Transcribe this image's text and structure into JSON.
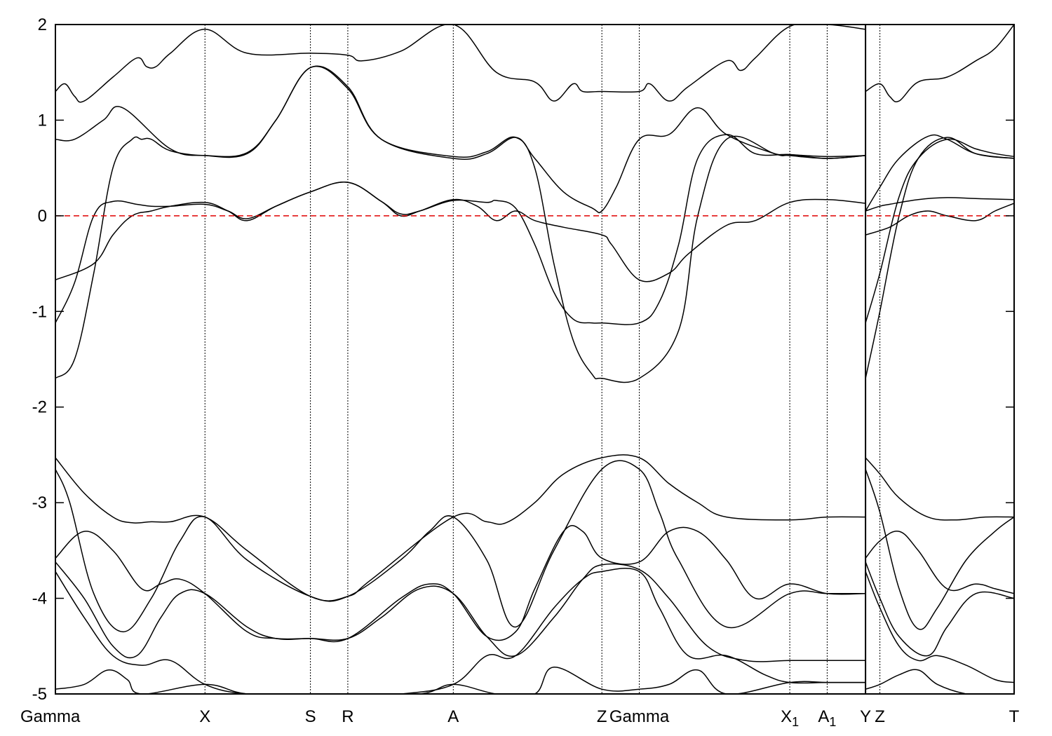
{
  "chart_data": {
    "type": "line",
    "title": "",
    "xlabel": "",
    "ylabel": "",
    "ylim": [
      -5,
      2
    ],
    "xlim": [
      0,
      1
    ],
    "grid": false,
    "y_ticks": [
      "2",
      "1",
      "0",
      "-1",
      "-2",
      "-3",
      "-4",
      "-5"
    ],
    "y_tick_values": [
      2,
      1,
      0,
      -1,
      -2,
      -3,
      -4,
      -5
    ],
    "fermi_level": 0,
    "fermi_color": "#e00000",
    "k_points": [
      {
        "label": "Gamma",
        "sub": "",
        "x": 0.0
      },
      {
        "label": "X",
        "sub": "",
        "x": 0.156
      },
      {
        "label": "S",
        "sub": "",
        "x": 0.266
      },
      {
        "label": "R",
        "sub": "",
        "x": 0.305
      },
      {
        "label": "A",
        "sub": "",
        "x": 0.415
      },
      {
        "label": "Z",
        "sub": "",
        "x": 0.57
      },
      {
        "label": "Gamma",
        "sub": "",
        "x": 0.609
      },
      {
        "label": "X",
        "sub": "1",
        "x": 0.766
      },
      {
        "label": "A",
        "sub": "1",
        "x": 0.805
      },
      {
        "label": "Y",
        "sub": "",
        "x": 0.845
      },
      {
        "label": "Z",
        "sub": "",
        "x": 0.86
      },
      {
        "label": "T",
        "sub": "",
        "x": 1.0
      }
    ],
    "segment_break_x": 0.845,
    "series": [
      {
        "x": [
          0,
          0.01,
          0.02,
          0.03,
          0.06,
          0.085,
          0.095,
          0.105,
          0.12,
          0.156,
          0.2,
          0.266,
          0.305,
          0.32,
          0.36,
          0.415,
          0.46,
          0.5,
          0.52,
          0.54,
          0.55,
          0.57,
          0.609,
          0.62,
          0.64,
          0.66,
          0.7,
          0.715,
          0.73,
          0.766,
          0.805,
          0.845
        ],
        "y": [
          1.3,
          1.38,
          1.25,
          1.2,
          1.45,
          1.65,
          1.56,
          1.56,
          1.7,
          1.95,
          1.7,
          1.7,
          1.68,
          1.62,
          1.72,
          2.0,
          1.5,
          1.4,
          1.2,
          1.38,
          1.3,
          1.3,
          1.3,
          1.38,
          1.2,
          1.35,
          1.62,
          1.52,
          1.65,
          1.98,
          2.0,
          1.95
        ]
      },
      {
        "x": [
          0,
          0.02,
          0.05,
          0.07,
          0.12,
          0.156,
          0.2,
          0.23,
          0.266,
          0.305,
          0.34,
          0.415,
          0.45,
          0.48,
          0.5,
          0.53,
          0.56,
          0.57,
          0.585,
          0.609,
          0.64,
          0.67,
          0.7,
          0.75,
          0.766,
          0.805,
          0.845
        ],
        "y": [
          0.8,
          0.8,
          1.0,
          1.13,
          0.7,
          0.63,
          0.65,
          1.0,
          1.55,
          1.35,
          0.8,
          0.6,
          0.65,
          0.82,
          0.6,
          0.25,
          0.08,
          0.05,
          0.3,
          0.8,
          0.85,
          1.13,
          0.85,
          0.65,
          0.63,
          0.6,
          0.63
        ]
      },
      {
        "x": [
          0,
          0.02,
          0.04,
          0.06,
          0.08,
          0.09,
          0.1,
          0.12,
          0.156,
          0.2,
          0.23,
          0.266,
          0.305,
          0.34,
          0.415,
          0.45,
          0.48,
          0.5,
          0.52,
          0.54,
          0.56,
          0.57,
          0.609,
          0.65,
          0.67,
          0.7,
          0.75,
          0.766,
          0.805,
          0.845
        ],
        "y": [
          -1.7,
          -1.5,
          -0.6,
          0.5,
          0.8,
          0.8,
          0.8,
          0.68,
          0.63,
          0.66,
          1.0,
          1.55,
          1.33,
          0.8,
          0.62,
          0.67,
          0.82,
          0.5,
          -0.5,
          -1.3,
          -1.66,
          -1.7,
          -1.7,
          -1.2,
          0.0,
          0.8,
          0.65,
          0.64,
          0.62,
          0.63
        ]
      },
      {
        "x": [
          0,
          0.02,
          0.04,
          0.06,
          0.085,
          0.1,
          0.12,
          0.156,
          0.18,
          0.2,
          0.23,
          0.266,
          0.305,
          0.34,
          0.36,
          0.38,
          0.415,
          0.45,
          0.46,
          0.48,
          0.5,
          0.52,
          0.54,
          0.56,
          0.57,
          0.609,
          0.63,
          0.65,
          0.67,
          0.7,
          0.73,
          0.766,
          0.805,
          0.845
        ],
        "y": [
          -1.12,
          -0.7,
          0.0,
          0.15,
          0.12,
          0.1,
          0.1,
          0.12,
          0.05,
          -0.03,
          0.1,
          0.25,
          0.35,
          0.15,
          0.02,
          0.05,
          0.16,
          0.14,
          0.16,
          0.08,
          -0.3,
          -0.8,
          -1.08,
          -1.12,
          -1.12,
          -1.12,
          -0.9,
          -0.3,
          0.6,
          0.85,
          0.65,
          0.64,
          0.6,
          0.63
        ]
      },
      {
        "x": [
          0,
          0.04,
          0.06,
          0.08,
          0.1,
          0.12,
          0.156,
          0.18,
          0.2,
          0.23,
          0.266,
          0.305,
          0.34,
          0.36,
          0.38,
          0.415,
          0.44,
          0.46,
          0.48,
          0.5,
          0.53,
          0.57,
          0.58,
          0.609,
          0.64,
          0.66,
          0.7,
          0.73,
          0.766,
          0.805,
          0.845
        ],
        "y": [
          -0.67,
          -0.5,
          -0.2,
          0.0,
          0.05,
          0.1,
          0.14,
          0.05,
          -0.05,
          0.1,
          0.25,
          0.35,
          0.15,
          0.0,
          0.05,
          0.17,
          0.1,
          -0.05,
          0.05,
          -0.05,
          -0.12,
          -0.2,
          -0.3,
          -0.67,
          -0.6,
          -0.4,
          -0.1,
          -0.05,
          0.14,
          0.17,
          0.13
        ]
      },
      {
        "x": [
          0,
          0.03,
          0.06,
          0.08,
          0.1,
          0.12,
          0.156,
          0.2,
          0.266,
          0.305,
          0.33,
          0.415,
          0.45,
          0.47,
          0.5,
          0.53,
          0.57,
          0.609,
          0.64,
          0.67,
          0.7,
          0.766,
          0.805,
          0.845
        ],
        "y": [
          -2.53,
          -2.9,
          -3.15,
          -3.21,
          -3.2,
          -3.2,
          -3.15,
          -3.5,
          -3.98,
          -3.98,
          -3.8,
          -3.15,
          -3.2,
          -3.21,
          -3.0,
          -2.7,
          -2.53,
          -2.53,
          -2.8,
          -3.0,
          -3.15,
          -3.18,
          -3.15,
          -3.15
        ]
      },
      {
        "x": [
          0,
          0.015,
          0.04,
          0.07,
          0.1,
          0.13,
          0.156,
          0.2,
          0.266,
          0.305,
          0.36,
          0.39,
          0.415,
          0.45,
          0.48,
          0.52,
          0.57,
          0.609,
          0.63,
          0.65,
          0.7,
          0.766,
          0.805,
          0.845
        ],
        "y": [
          -2.65,
          -3.0,
          -3.95,
          -4.35,
          -4.0,
          -3.4,
          -3.15,
          -3.6,
          -3.98,
          -3.98,
          -3.6,
          -3.3,
          -3.15,
          -3.6,
          -4.3,
          -3.5,
          -2.65,
          -2.65,
          -3.1,
          -3.6,
          -4.3,
          -3.95,
          -3.95,
          -3.95
        ]
      },
      {
        "x": [
          0,
          0.03,
          0.06,
          0.09,
          0.11,
          0.13,
          0.156,
          0.2,
          0.23,
          0.266,
          0.305,
          0.36,
          0.39,
          0.415,
          0.45,
          0.48,
          0.5,
          0.53,
          0.55,
          0.57,
          0.609,
          0.64,
          0.67,
          0.7,
          0.73,
          0.766,
          0.805,
          0.845
        ],
        "y": [
          -3.58,
          -3.3,
          -3.5,
          -3.9,
          -3.85,
          -3.8,
          -3.95,
          -4.35,
          -4.42,
          -4.42,
          -4.42,
          -4.0,
          -3.85,
          -3.95,
          -4.4,
          -4.35,
          -3.9,
          -3.3,
          -3.3,
          -3.58,
          -3.62,
          -3.3,
          -3.3,
          -3.6,
          -4.0,
          -3.85,
          -3.95,
          -3.95
        ]
      },
      {
        "x": [
          0,
          0.03,
          0.06,
          0.085,
          0.11,
          0.13,
          0.156,
          0.2,
          0.23,
          0.266,
          0.305,
          0.34,
          0.38,
          0.415,
          0.45,
          0.48,
          0.52,
          0.55,
          0.57,
          0.609,
          0.64,
          0.68,
          0.72,
          0.766,
          0.805,
          0.845
        ],
        "y": [
          -3.62,
          -4.0,
          -4.5,
          -4.6,
          -4.2,
          -3.95,
          -3.95,
          -4.3,
          -4.42,
          -4.42,
          -4.42,
          -4.2,
          -3.9,
          -3.95,
          -4.4,
          -4.6,
          -4.2,
          -3.8,
          -3.65,
          -3.7,
          -4.0,
          -4.5,
          -4.65,
          -4.65,
          -4.65,
          -4.65
        ]
      },
      {
        "x": [
          0,
          0.03,
          0.06,
          0.09,
          0.12,
          0.156,
          0.2,
          0.266,
          0.305,
          0.36,
          0.415,
          0.45,
          0.48,
          0.52,
          0.55,
          0.57,
          0.609,
          0.63,
          0.66,
          0.7,
          0.74,
          0.766,
          0.805,
          0.845
        ],
        "y": [
          -3.72,
          -4.2,
          -4.6,
          -4.7,
          -4.65,
          -4.9,
          -5.0,
          -5.0,
          -5.0,
          -5.0,
          -4.9,
          -4.6,
          -4.6,
          -4.1,
          -3.8,
          -3.72,
          -3.72,
          -4.1,
          -4.6,
          -4.6,
          -4.8,
          -4.88,
          -4.88,
          -4.88
        ]
      },
      {
        "x": [
          0,
          0.03,
          0.055,
          0.075,
          0.09,
          0.156,
          0.2,
          0.266,
          0.305,
          0.38,
          0.415,
          0.46,
          0.5,
          0.52,
          0.57,
          0.609,
          0.64,
          0.67,
          0.7,
          0.766,
          0.805,
          0.845
        ],
        "y": [
          -4.95,
          -4.9,
          -4.75,
          -4.85,
          -5.0,
          -4.9,
          -5.0,
          -5.0,
          -5.0,
          -5.0,
          -4.9,
          -5.0,
          -5.0,
          -4.72,
          -4.95,
          -4.95,
          -4.9,
          -4.75,
          -5.0,
          -4.88,
          -4.88,
          -4.88
        ]
      },
      {
        "x": [
          0.845,
          0.86,
          0.87,
          0.88,
          0.9,
          0.93,
          0.96,
          0.98,
          1.0
        ],
        "y": [
          1.3,
          1.38,
          1.25,
          1.2,
          1.4,
          1.45,
          1.62,
          1.75,
          2.0
        ]
      },
      {
        "x": [
          0.845,
          0.86,
          0.88,
          0.91,
          0.93,
          0.96,
          1.0
        ],
        "y": [
          0.05,
          0.3,
          0.6,
          0.83,
          0.8,
          0.65,
          0.6
        ]
      },
      {
        "x": [
          0.845,
          0.86,
          0.88,
          0.9,
          0.93,
          0.96,
          1.0
        ],
        "y": [
          -1.7,
          -1.0,
          0.0,
          0.6,
          0.82,
          0.65,
          0.6
        ]
      },
      {
        "x": [
          0.845,
          0.86,
          0.88,
          0.9,
          0.93,
          0.96,
          0.98,
          1.0
        ],
        "y": [
          -1.12,
          -0.6,
          0.2,
          0.6,
          0.8,
          0.7,
          0.65,
          0.62
        ]
      },
      {
        "x": [
          0.845,
          0.87,
          0.89,
          0.91,
          0.93,
          0.96,
          0.98,
          1.0
        ],
        "y": [
          -0.2,
          -0.12,
          0.0,
          0.05,
          0.0,
          -0.05,
          0.05,
          0.13
        ]
      },
      {
        "x": [
          0.845,
          0.86,
          0.87,
          0.9,
          0.93,
          0.96,
          1.0
        ],
        "y": [
          0.05,
          0.1,
          0.12,
          0.17,
          0.19,
          0.18,
          0.17
        ]
      },
      {
        "x": [
          0.845,
          0.86,
          0.88,
          0.91,
          0.94,
          0.97,
          1.0
        ],
        "y": [
          -2.53,
          -2.7,
          -2.95,
          -3.15,
          -3.18,
          -3.15,
          -3.15
        ]
      },
      {
        "x": [
          0.845,
          0.86,
          0.88,
          0.9,
          0.92,
          0.95,
          0.98,
          1.0
        ],
        "y": [
          -2.65,
          -3.1,
          -3.9,
          -4.32,
          -4.1,
          -3.6,
          -3.3,
          -3.15
        ]
      },
      {
        "x": [
          0.845,
          0.86,
          0.88,
          0.9,
          0.93,
          0.96,
          0.98,
          1.0
        ],
        "y": [
          -3.58,
          -3.4,
          -3.3,
          -3.5,
          -3.9,
          -3.85,
          -3.9,
          -3.95
        ]
      },
      {
        "x": [
          0.845,
          0.86,
          0.88,
          0.91,
          0.93,
          0.96,
          1.0
        ],
        "y": [
          -3.62,
          -4.0,
          -4.4,
          -4.6,
          -4.3,
          -3.95,
          -4.0
        ]
      },
      {
        "x": [
          0.845,
          0.86,
          0.88,
          0.9,
          0.92,
          0.95,
          0.98,
          1.0
        ],
        "y": [
          -3.72,
          -4.1,
          -4.5,
          -4.65,
          -4.6,
          -4.7,
          -4.85,
          -4.88
        ]
      },
      {
        "x": [
          0.845,
          0.86,
          0.88,
          0.9,
          0.92,
          0.95,
          0.97,
          1.0
        ],
        "y": [
          -4.95,
          -4.9,
          -4.8,
          -4.75,
          -4.9,
          -5.0,
          -5.0,
          -5.0
        ]
      }
    ]
  }
}
